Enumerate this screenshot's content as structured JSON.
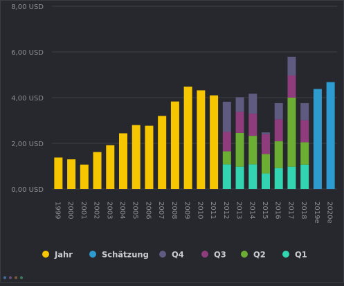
{
  "chart_data": {
    "type": "bar",
    "currency_unit": "USD",
    "y_ticks": [
      "0,00 USD",
      "2,00 USD",
      "4,00 USD",
      "6,00 USD",
      "8,00 USD"
    ],
    "ylim": [
      0,
      8
    ],
    "grid": true,
    "legend_position": "bottom",
    "categories": [
      "1999",
      "2000",
      "2001",
      "2002",
      "2003",
      "2004",
      "2005",
      "2006",
      "2007",
      "2008",
      "2009",
      "2010",
      "2011",
      "2012",
      "2013",
      "2014",
      "2015",
      "2016",
      "2017",
      "2018",
      "2019e",
      "2020e"
    ],
    "series": [
      {
        "name": "Jahr",
        "color": "#f6c600",
        "values": [
          1.38,
          1.3,
          1.07,
          1.62,
          1.92,
          2.44,
          2.8,
          2.77,
          3.2,
          3.83,
          4.48,
          4.32,
          4.1,
          null,
          null,
          null,
          null,
          null,
          null,
          null,
          null,
          null
        ]
      },
      {
        "name": "Schätzung",
        "color": "#2d9bcf",
        "values": [
          null,
          null,
          null,
          null,
          null,
          null,
          null,
          null,
          null,
          null,
          null,
          null,
          null,
          null,
          null,
          null,
          null,
          null,
          null,
          null,
          4.38,
          4.68
        ]
      },
      {
        "name": "Q1",
        "color": "#33d4b1",
        "values": [
          null,
          null,
          null,
          null,
          null,
          null,
          null,
          null,
          null,
          null,
          null,
          null,
          null,
          1.08,
          0.98,
          1.08,
          0.68,
          0.92,
          0.98,
          1.07,
          null,
          null
        ]
      },
      {
        "name": "Q2",
        "color": "#6cad34",
        "values": [
          null,
          null,
          null,
          null,
          null,
          null,
          null,
          null,
          null,
          null,
          null,
          null,
          null,
          0.57,
          1.48,
          1.25,
          0.85,
          1.17,
          3.02,
          0.98,
          null,
          null
        ]
      },
      {
        "name": "Q3",
        "color": "#8e3c7c",
        "values": [
          null,
          null,
          null,
          null,
          null,
          null,
          null,
          null,
          null,
          null,
          null,
          null,
          null,
          0.85,
          0.92,
          0.97,
          0.87,
          0.96,
          0.97,
          0.96,
          null,
          null
        ]
      },
      {
        "name": "Q4",
        "color": "#5e5a80",
        "values": [
          null,
          null,
          null,
          null,
          null,
          null,
          null,
          null,
          null,
          null,
          null,
          null,
          null,
          1.32,
          0.64,
          0.87,
          0.08,
          0.71,
          0.82,
          0.75,
          null,
          null
        ]
      }
    ],
    "legend": [
      {
        "label": "Jahr",
        "color": "#f6c600"
      },
      {
        "label": "Schätzung",
        "color": "#2d9bcf"
      },
      {
        "label": "Q4",
        "color": "#5e5a80"
      },
      {
        "label": "Q3",
        "color": "#8e3c7c"
      },
      {
        "label": "Q2",
        "color": "#6cad34"
      },
      {
        "label": "Q1",
        "color": "#33d4b1"
      }
    ]
  },
  "footer_dots": [
    "#3f6fa0",
    "#6a4a7a",
    "#7a5a3a",
    "#3a7a5a"
  ]
}
